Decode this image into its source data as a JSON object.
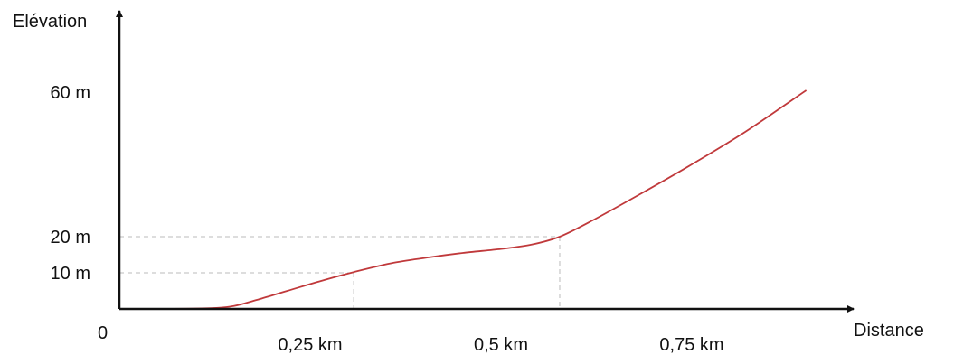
{
  "chart_data": {
    "type": "line",
    "title": "",
    "xlabel": "Distance",
    "ylabel": "Elévation",
    "origin_label": "0",
    "xlim": [
      0,
      1.0
    ],
    "ylim": [
      0,
      80
    ],
    "x_ticks": [
      {
        "value": 0.25,
        "label": "0,25 km"
      },
      {
        "value": 0.5,
        "label": "0,5 km"
      },
      {
        "value": 0.75,
        "label": "0,75 km"
      }
    ],
    "y_ticks": [
      {
        "value": 10,
        "label": "10 m"
      },
      {
        "value": 20,
        "label": "20 m"
      },
      {
        "value": 60,
        "label": "60 m"
      }
    ],
    "guides": [
      {
        "x": 0.307,
        "y": 10
      },
      {
        "x": 0.577,
        "y": 20
      }
    ],
    "series": [
      {
        "color": "#c0393b",
        "x": [
          0,
          0.06,
          0.12,
          0.15,
          0.18,
          0.22,
          0.26,
          0.307,
          0.36,
          0.41,
          0.45,
          0.5,
          0.54,
          0.577,
          0.62,
          0.68,
          0.75,
          0.82,
          0.9
        ],
        "y": [
          0,
          0,
          0.2,
          0.8,
          2.5,
          5,
          7.5,
          10.2,
          12.8,
          14.4,
          15.5,
          16.6,
          17.8,
          20,
          24.5,
          31.5,
          40,
          49,
          60.5
        ]
      }
    ],
    "grid": false,
    "legend": "none"
  }
}
